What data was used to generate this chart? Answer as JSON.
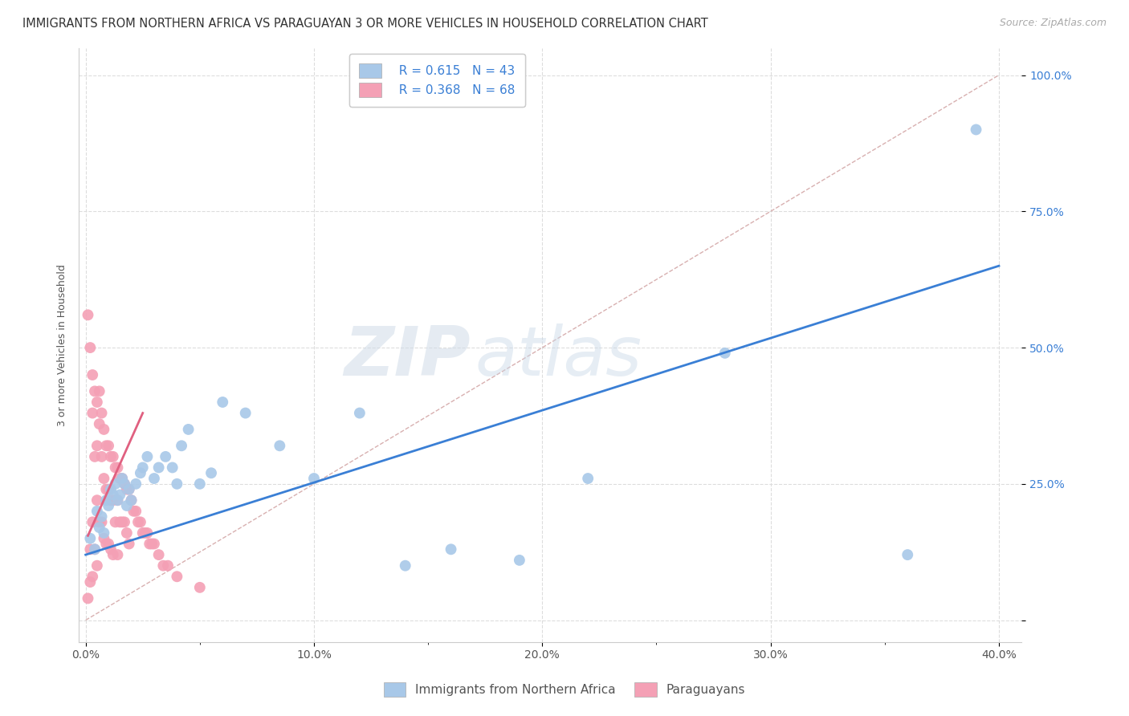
{
  "title": "IMMIGRANTS FROM NORTHERN AFRICA VS PARAGUAYAN 3 OR MORE VEHICLES IN HOUSEHOLD CORRELATION CHART",
  "source": "Source: ZipAtlas.com",
  "ylabel": "3 or more Vehicles in Household",
  "xlim": [
    -0.003,
    0.41
  ],
  "ylim": [
    -0.04,
    1.05
  ],
  "blue_color": "#a8c8e8",
  "pink_color": "#f4a0b5",
  "blue_line_color": "#3a7fd5",
  "pink_line_color": "#e06080",
  "diag_line_color": "#d8b0b0",
  "R_blue": 0.615,
  "N_blue": 43,
  "R_pink": 0.368,
  "N_pink": 68,
  "legend_label_blue": "Immigrants from Northern Africa",
  "legend_label_pink": "Paraguayans",
  "watermark_zip": "ZIP",
  "watermark_atlas": "atlas",
  "blue_scatter_x": [
    0.002,
    0.004,
    0.005,
    0.006,
    0.007,
    0.008,
    0.009,
    0.01,
    0.011,
    0.012,
    0.013,
    0.014,
    0.015,
    0.016,
    0.017,
    0.018,
    0.019,
    0.02,
    0.022,
    0.024,
    0.025,
    0.027,
    0.03,
    0.032,
    0.035,
    0.038,
    0.04,
    0.042,
    0.045,
    0.05,
    0.055,
    0.06,
    0.07,
    0.085,
    0.1,
    0.12,
    0.14,
    0.16,
    0.19,
    0.22,
    0.28,
    0.36,
    0.39
  ],
  "blue_scatter_y": [
    0.15,
    0.13,
    0.2,
    0.17,
    0.19,
    0.16,
    0.22,
    0.21,
    0.24,
    0.23,
    0.25,
    0.22,
    0.23,
    0.26,
    0.25,
    0.21,
    0.24,
    0.22,
    0.25,
    0.27,
    0.28,
    0.3,
    0.26,
    0.28,
    0.3,
    0.28,
    0.25,
    0.32,
    0.35,
    0.25,
    0.27,
    0.4,
    0.38,
    0.32,
    0.26,
    0.38,
    0.1,
    0.13,
    0.11,
    0.26,
    0.49,
    0.12,
    0.9
  ],
  "pink_scatter_x": [
    0.001,
    0.001,
    0.002,
    0.002,
    0.002,
    0.003,
    0.003,
    0.003,
    0.003,
    0.004,
    0.004,
    0.004,
    0.005,
    0.005,
    0.005,
    0.005,
    0.006,
    0.006,
    0.006,
    0.007,
    0.007,
    0.007,
    0.008,
    0.008,
    0.008,
    0.009,
    0.009,
    0.009,
    0.01,
    0.01,
    0.01,
    0.011,
    0.011,
    0.011,
    0.012,
    0.012,
    0.012,
    0.013,
    0.013,
    0.014,
    0.014,
    0.014,
    0.015,
    0.015,
    0.016,
    0.016,
    0.017,
    0.017,
    0.018,
    0.018,
    0.019,
    0.019,
    0.02,
    0.021,
    0.022,
    0.023,
    0.024,
    0.025,
    0.026,
    0.027,
    0.028,
    0.029,
    0.03,
    0.032,
    0.034,
    0.036,
    0.04,
    0.05
  ],
  "pink_scatter_y": [
    0.56,
    0.04,
    0.5,
    0.13,
    0.07,
    0.45,
    0.38,
    0.18,
    0.08,
    0.42,
    0.3,
    0.13,
    0.4,
    0.32,
    0.22,
    0.1,
    0.42,
    0.36,
    0.18,
    0.38,
    0.3,
    0.18,
    0.35,
    0.26,
    0.15,
    0.32,
    0.24,
    0.14,
    0.32,
    0.24,
    0.14,
    0.3,
    0.22,
    0.13,
    0.3,
    0.22,
    0.12,
    0.28,
    0.18,
    0.28,
    0.22,
    0.12,
    0.26,
    0.18,
    0.26,
    0.18,
    0.25,
    0.18,
    0.24,
    0.16,
    0.24,
    0.14,
    0.22,
    0.2,
    0.2,
    0.18,
    0.18,
    0.16,
    0.16,
    0.16,
    0.14,
    0.14,
    0.14,
    0.12,
    0.1,
    0.1,
    0.08,
    0.06
  ],
  "blue_line_x": [
    0.0,
    0.4
  ],
  "blue_line_y": [
    0.12,
    0.65
  ],
  "pink_line_x": [
    0.001,
    0.025
  ],
  "pink_line_y": [
    0.155,
    0.38
  ],
  "diag_line_x": [
    0.0,
    0.4
  ],
  "diag_line_y": [
    0.0,
    1.0
  ],
  "title_fontsize": 10.5,
  "source_fontsize": 9,
  "axis_label_fontsize": 9,
  "tick_fontsize": 10,
  "legend_fontsize": 11
}
